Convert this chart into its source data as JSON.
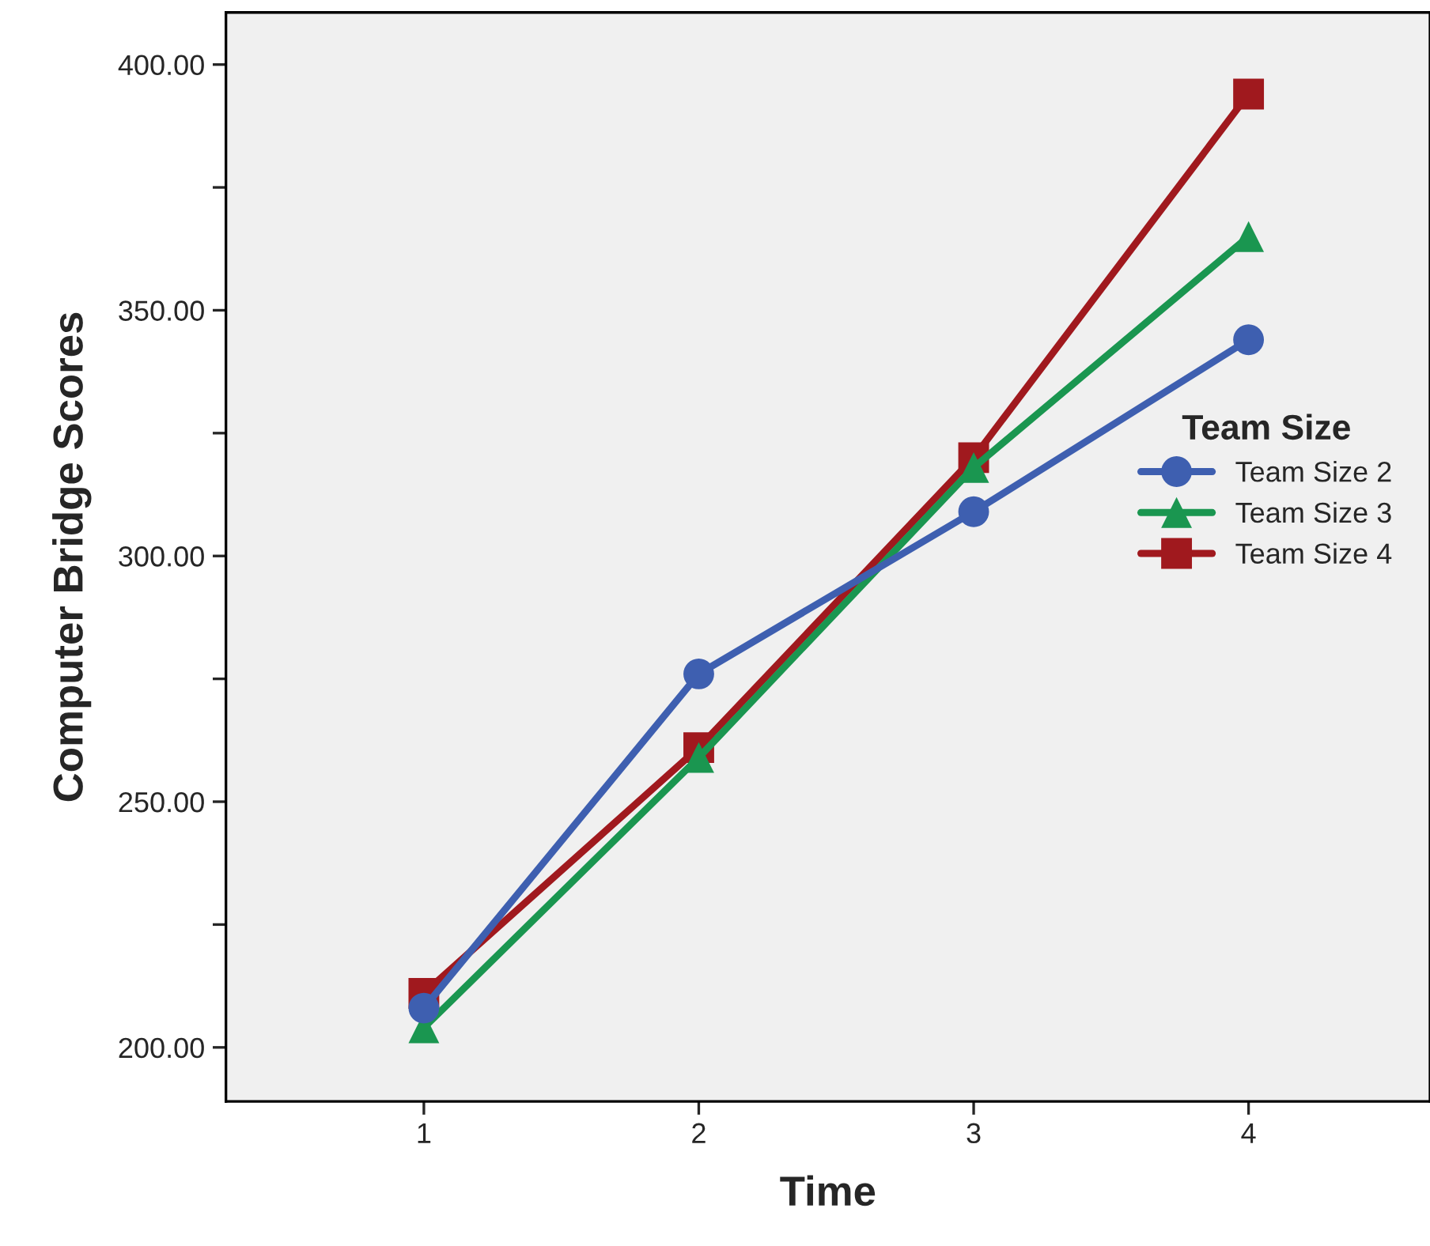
{
  "chart_data": {
    "type": "line",
    "xlabel": "Time",
    "ylabel": "Computer Bridge Scores",
    "legend_title": "Team Size",
    "x": [
      1,
      2,
      3,
      4
    ],
    "series": [
      {
        "name": "Team Size 2",
        "color": "#3e5fb0",
        "marker": "circle",
        "values": [
          208,
          276,
          309,
          344
        ]
      },
      {
        "name": "Team Size 3",
        "color": "#1a9650",
        "marker": "triangle",
        "values": [
          204,
          259,
          318,
          365
        ]
      },
      {
        "name": "Team Size 4",
        "color": "#a0191e",
        "marker": "square",
        "values": [
          211,
          261,
          320,
          394
        ]
      }
    ],
    "xlim": [
      0.28,
      4.66
    ],
    "xticks": [
      1,
      2,
      3,
      4
    ],
    "ylim": [
      189,
      410.6
    ],
    "yticks": [
      {
        "value": 200,
        "label": "200.00"
      },
      {
        "value": 225,
        "label": null
      },
      {
        "value": 250,
        "label": "250.00"
      },
      {
        "value": 275,
        "label": null
      },
      {
        "value": 300,
        "label": "300.00"
      },
      {
        "value": 325,
        "label": null
      },
      {
        "value": 350,
        "label": "350.00"
      },
      {
        "value": 375,
        "label": null
      },
      {
        "value": 400,
        "label": "400.00"
      }
    ],
    "grid": false,
    "legend": "right",
    "line_style": "solid"
  }
}
